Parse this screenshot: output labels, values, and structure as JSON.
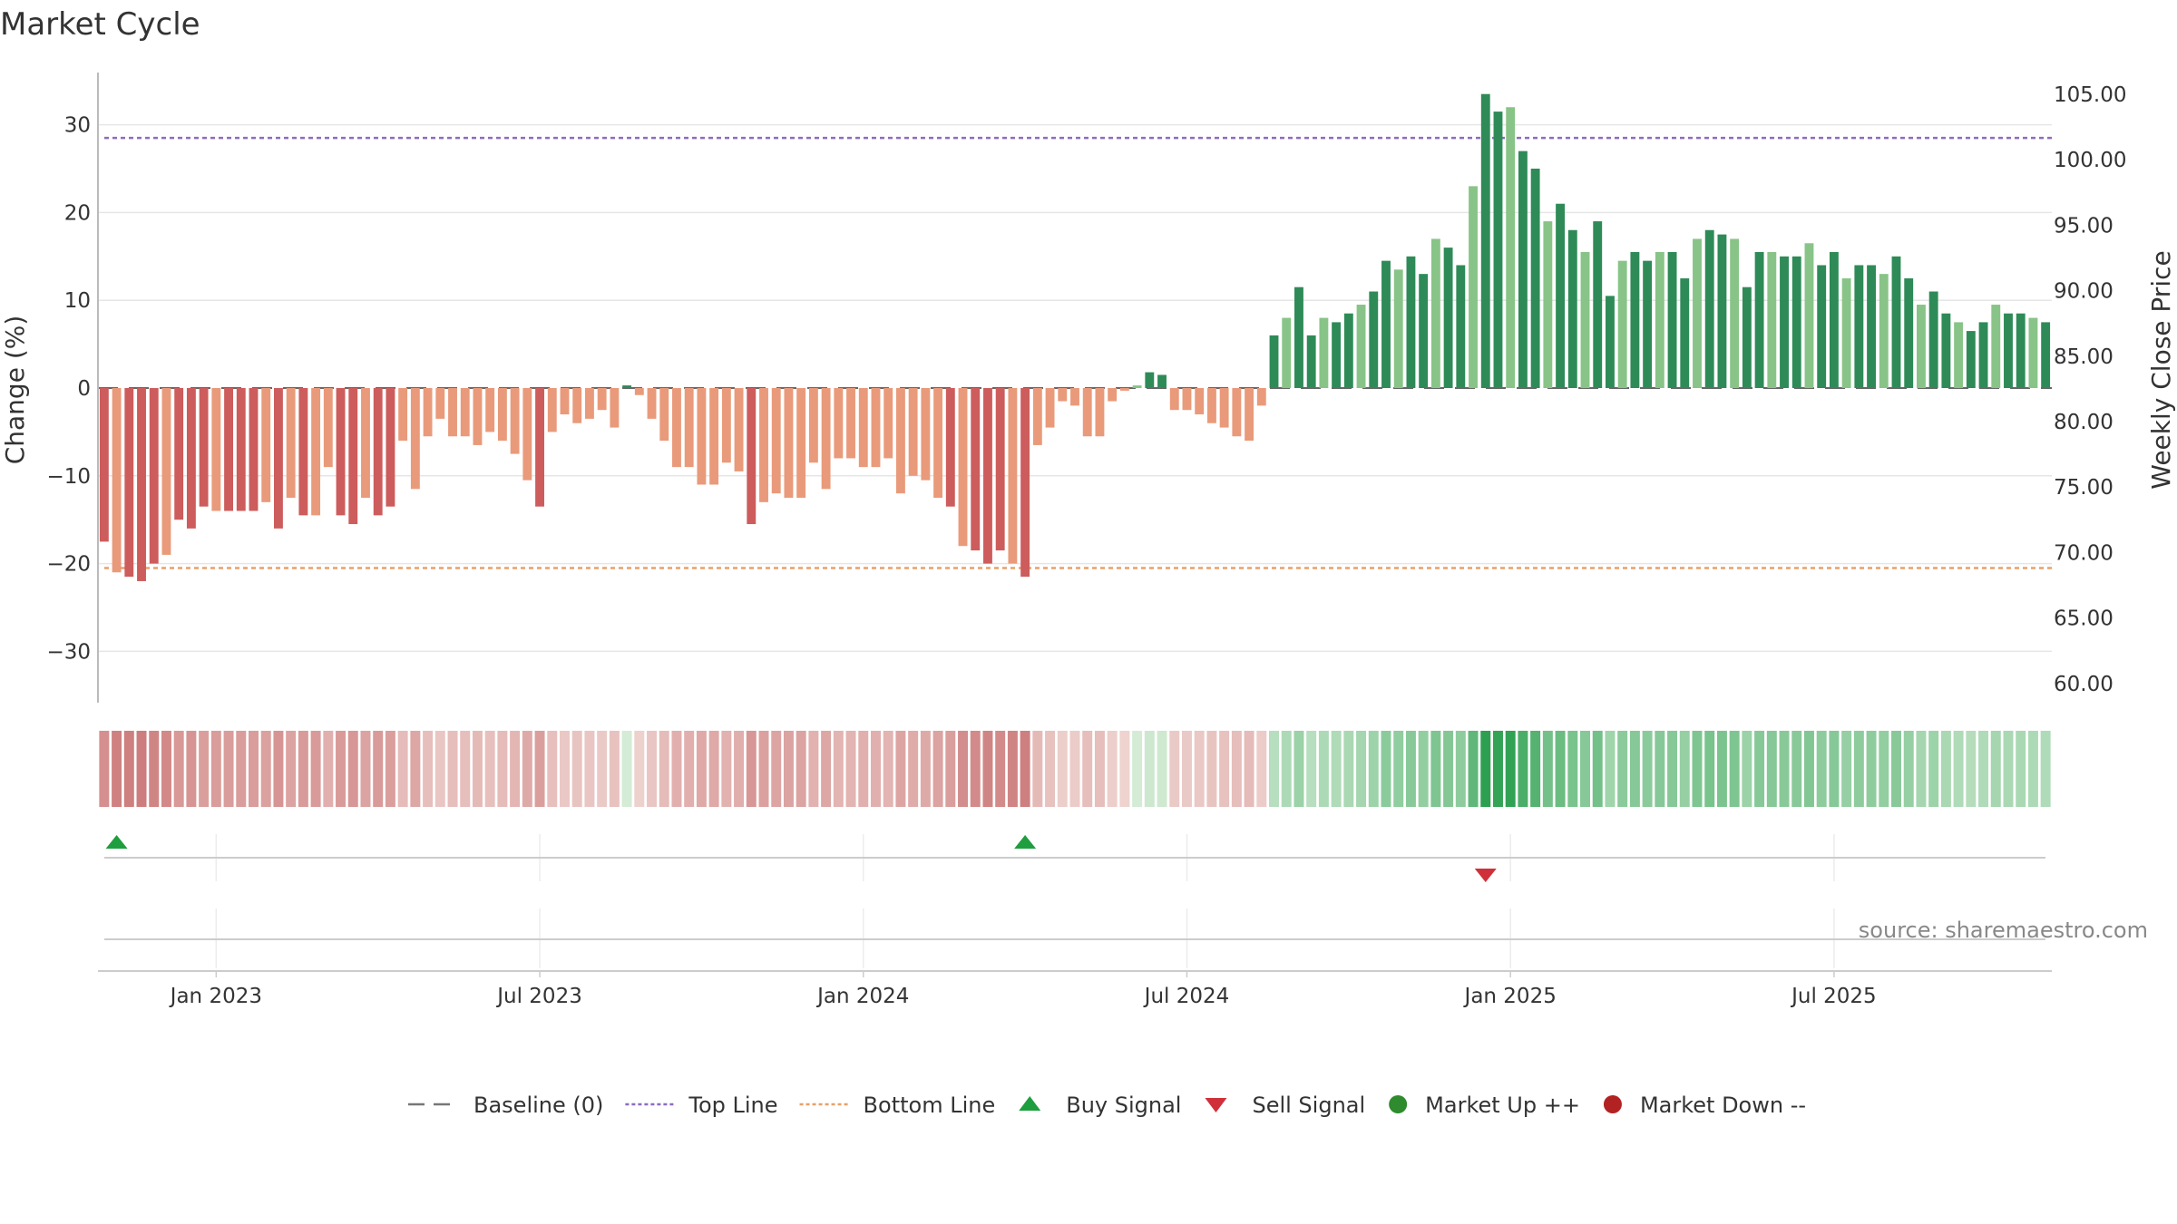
{
  "chart_data": {
    "type": "bar",
    "title": "Market Cycle",
    "ylabel": "Change (%)",
    "y2label": "Weekly Close Price",
    "ylim": [
      -36,
      36
    ],
    "y2lim": [
      58,
      106
    ],
    "yticks": [
      {
        "v": 30,
        "label": "30"
      },
      {
        "v": 20,
        "label": "20"
      },
      {
        "v": 10,
        "label": "10"
      },
      {
        "v": 0,
        "label": "0"
      },
      {
        "v": -10,
        "label": "−10"
      },
      {
        "v": -20,
        "label": "−20"
      },
      {
        "v": -30,
        "label": "−30"
      }
    ],
    "y2ticks": [
      "105.00",
      "100.00",
      "95.00",
      "90.00",
      "85.00",
      "80.00",
      "75.00",
      "70.00",
      "65.00",
      "60.00"
    ],
    "xticks": [
      "Jan 2023",
      "Jul 2023",
      "Jan 2024",
      "Jul 2024",
      "Jan 2025",
      "Jul 2025"
    ],
    "xtick_index": [
      9,
      35,
      61,
      87,
      113,
      139
    ],
    "top_line": 28.5,
    "bottom_line": -20.5,
    "values": [
      -17.5,
      -21,
      -21.5,
      -22,
      -20,
      -19,
      -15,
      -16,
      -13.5,
      -14,
      -14,
      -14,
      -14,
      -13,
      -16,
      -12.5,
      -14.5,
      -14.5,
      -9,
      -14.5,
      -15.5,
      -12.5,
      -14.5,
      -13.5,
      -6,
      -11.5,
      -5.5,
      -3.5,
      -5.5,
      -5.5,
      -6.5,
      -5,
      -6,
      -7.5,
      -10.5,
      -13.5,
      -5,
      -3,
      -4,
      -3.5,
      -2.5,
      -4.5,
      0.3,
      -0.8,
      -3.5,
      -6,
      -9,
      -9,
      -11,
      -11,
      -8.5,
      -9.5,
      -15.5,
      -13,
      -12,
      -12.5,
      -12.5,
      -8.5,
      -11.5,
      -8,
      -8,
      -9,
      -9,
      -8,
      -12,
      -10,
      -10.5,
      -12.5,
      -13.5,
      -18,
      -18.5,
      -20,
      -18.5,
      -20,
      -21.5,
      -6.5,
      -4.5,
      -1.5,
      -2,
      -5.5,
      -5.5,
      -1.5,
      -0.3,
      0.3,
      1.8,
      1.5,
      -2.5,
      -2.5,
      -3,
      -4,
      -4.5,
      -5.5,
      -6,
      -2,
      6,
      8,
      11.5,
      6,
      8,
      7.5,
      8.5,
      9.5,
      11,
      14.5,
      13.5,
      15,
      13,
      17,
      16,
      14,
      23,
      33.5,
      31.5,
      32,
      27,
      25,
      19,
      21,
      18,
      15.5,
      19,
      10.5,
      14.5,
      15.5,
      14.5,
      15.5,
      15.5,
      12.5,
      17,
      18,
      17.5,
      17,
      11.5,
      15.5,
      15.5,
      15,
      15,
      16.5,
      14,
      15.5,
      12.5,
      14,
      14,
      13,
      15,
      12.5,
      9.5,
      11,
      8.5,
      7.5,
      6.5,
      7.5,
      9.5,
      8.5,
      8.5,
      8,
      7.5
    ],
    "signals": [
      {
        "type": "buy",
        "index": 1
      },
      {
        "type": "buy",
        "index": 74
      },
      {
        "type": "sell",
        "index": 111
      }
    ],
    "legend": [
      {
        "label": "Baseline (0)",
        "kind": "dash",
        "color": "#777777"
      },
      {
        "label": "Top Line",
        "kind": "dot",
        "color": "#8e6bbf"
      },
      {
        "label": "Bottom Line",
        "kind": "dot",
        "color": "#e8a06a"
      },
      {
        "label": "Buy Signal",
        "kind": "tri-up",
        "color": "#1e9e3e"
      },
      {
        "label": "Sell Signal",
        "kind": "tri-down",
        "color": "#d0303a"
      },
      {
        "label": "Market Up ++",
        "kind": "dot-circle",
        "color": "#2e8b2e"
      },
      {
        "label": "Market Down --",
        "kind": "dot-circle",
        "color": "#b22222"
      }
    ],
    "source": "source: sharemaestro.com",
    "colors": {
      "strong_up": "#2e8b57",
      "weak_up": "#88c487",
      "strong_down": "#cd5c5c",
      "weak_down": "#e99a7a",
      "top_line": "#8e6bbf",
      "bottom_line": "#e8a06a",
      "buy": "#1e9e3e",
      "sell": "#d0303a"
    }
  }
}
